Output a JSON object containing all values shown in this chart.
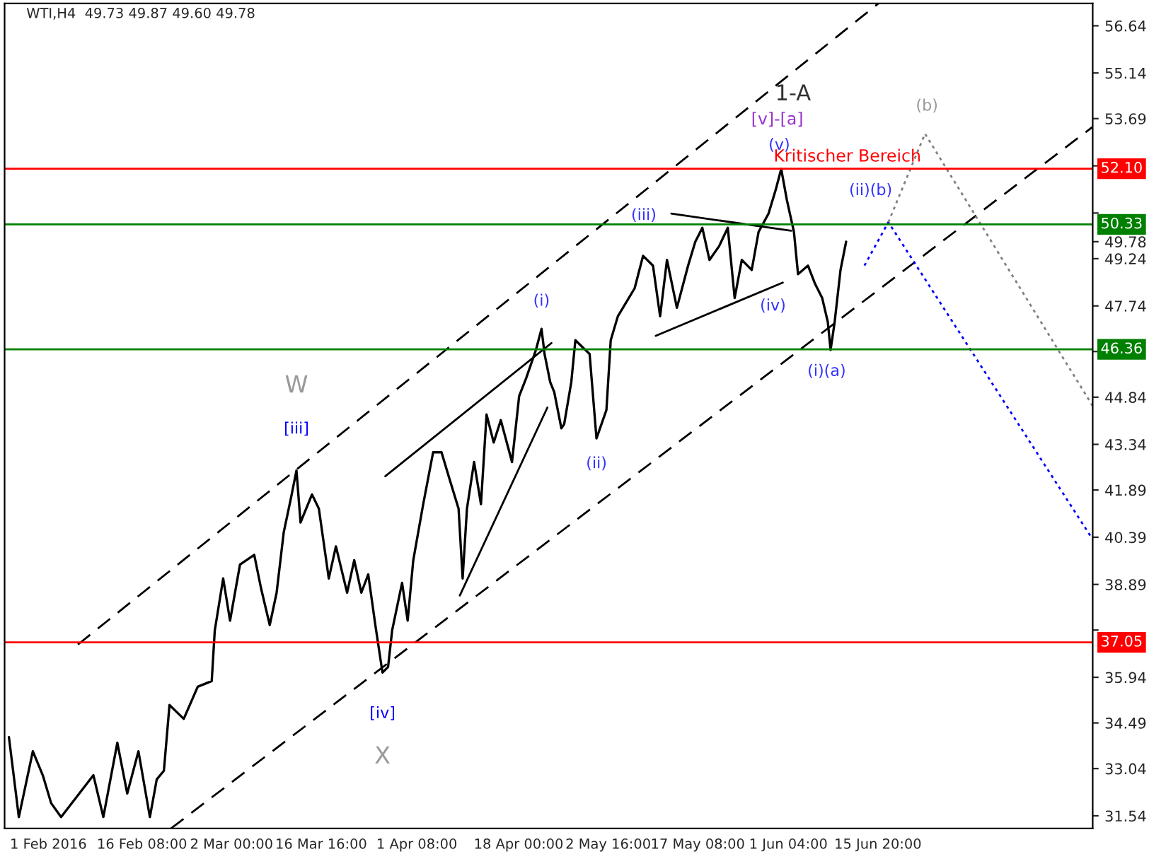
{
  "chart_data": {
    "type": "line",
    "title": "WTI,H4  49.73 49.87 49.60 49.78",
    "xlim": [
      "2016-01-24T20:00",
      "2016-07-21T00:00"
    ],
    "ylim": [
      31.14,
      57.35
    ],
    "xticks": [
      {
        "value": "2016-02-01T00:00",
        "label": "1 Feb 2016"
      },
      {
        "value": "2016-02-16T08:00",
        "label": "16 Feb 08:00"
      },
      {
        "value": "2016-03-02T00:00",
        "label": "2 Mar 00:00"
      },
      {
        "value": "2016-03-16T16:00",
        "label": "16 Mar 16:00"
      },
      {
        "value": "2016-04-01T08:00",
        "label": "1 Apr 08:00"
      },
      {
        "value": "2016-04-18T00:00",
        "label": "18 Apr 00:00"
      },
      {
        "value": "2016-05-02T16:00",
        "label": "2 May 16:00"
      },
      {
        "value": "2016-05-17T08:00",
        "label": "17 May 08:00"
      },
      {
        "value": "2016-06-01T04:00",
        "label": "1 Jun 04:00"
      },
      {
        "value": "2016-06-15T20:00",
        "label": "15 Jun 20:00"
      }
    ],
    "yticks": [
      56.64,
      55.14,
      53.69,
      {
        "value": 52.19,
        "label": null
      },
      {
        "value": 50.69,
        "label": null
      },
      {
        "value": 49.78,
        "label": "49.78"
      },
      49.24,
      47.74,
      {
        "value": 46.29,
        "label": null
      },
      44.84,
      43.34,
      41.89,
      40.39,
      38.89,
      {
        "value": 37.44,
        "label": null
      },
      35.94,
      34.49,
      33.04,
      31.54
    ],
    "grid": false,
    "legend": false,
    "marker": "none",
    "series": [
      {
        "color": "#000000",
        "line_style": "solid",
        "x": [
          "2016-01-25T13:00",
          "2016-01-27T04:00",
          "2016-01-29T11:00",
          "2016-01-31T02:00",
          "2016-02-01T11:00",
          "2016-02-03T02:00",
          "2016-02-08T09:00",
          "2016-02-10T00:00",
          "2016-02-12T07:00",
          "2016-02-13T22:00",
          "2016-02-15T18:00",
          "2016-02-17T15:00",
          "2016-02-18T18:00",
          "2016-02-19T22:00",
          "2016-02-20T20:00",
          "2016-02-23T04:00",
          "2016-02-25T11:00",
          "2016-02-27T18:00",
          "2016-02-28T06:00",
          "2016-02-29T15:00",
          "2016-03-01T18:00",
          "2016-03-03T09:00",
          "2016-03-05T17:00",
          "2016-03-06T20:00",
          "2016-03-08T06:00",
          "2016-03-09T09:00",
          "2016-03-10T13:00",
          "2016-03-11T17:00",
          "2016-03-12T15:00",
          "2016-03-13T07:00",
          "2016-03-15T04:00",
          "2016-03-16T07:00",
          "2016-03-17T22:00",
          "2016-03-19T02:00",
          "2016-03-20T22:00",
          "2016-03-22T02:00",
          "2016-03-23T06:00",
          "2016-03-24T09:00",
          "2016-03-25T13:00",
          "2016-03-26T17:00",
          "2016-03-27T15:00",
          "2016-03-28T07:00",
          "2016-03-29T22:00",
          "2016-03-30T20:00",
          "2016-03-31T18:00",
          "2016-04-02T09:00",
          "2016-04-04T00:00",
          "2016-04-05T09:00",
          "2016-04-06T13:00",
          "2016-04-08T04:00",
          "2016-04-08T20:00",
          "2016-04-09T13:00",
          "2016-04-10T17:00",
          "2016-04-11T20:00",
          "2016-04-12T18:00",
          "2016-04-13T22:00",
          "2016-04-15T02:00",
          "2016-04-16T22:00",
          "2016-04-18T02:00",
          "2016-04-19T06:00",
          "2016-04-20T20:00",
          "2016-04-21T18:00",
          "2016-04-22T06:00",
          "2016-04-23T04:00",
          "2016-04-23T20:00",
          "2016-04-25T00:00",
          "2016-04-25T11:00",
          "2016-04-26T15:00",
          "2016-04-27T07:00",
          "2016-04-29T15:00",
          "2016-04-30T18:00",
          "2016-05-02T09:00",
          "2016-05-03T02:00",
          "2016-05-04T06:00",
          "2016-05-07T00:00",
          "2016-05-08T09:00",
          "2016-05-10T00:00",
          "2016-05-11T04:00",
          "2016-05-12T07:00",
          "2016-05-13T22:00",
          "2016-05-15T18:00",
          "2016-05-16T22:00",
          "2016-05-18T02:00",
          "2016-05-19T06:00",
          "2016-05-20T20:00",
          "2016-05-22T06:00",
          "2016-05-23T09:00",
          "2016-05-24T13:00",
          "2016-05-26T04:00",
          "2016-05-27T07:00",
          "2016-05-28T22:00",
          "2016-05-30T02:00",
          "2016-05-31T00:00",
          "2016-05-31T22:00",
          "2016-06-02T02:00",
          "2016-06-02T18:00",
          "2016-06-04T09:00",
          "2016-06-05T13:00",
          "2016-06-06T17:00",
          "2016-06-07T15:00",
          "2016-06-08T02:00",
          "2016-06-08T18:00",
          "2016-06-09T17:00",
          "2016-06-10T15:00"
        ],
        "values": [
          34.04,
          31.5,
          33.59,
          32.83,
          31.94,
          31.5,
          32.83,
          31.5,
          33.86,
          32.25,
          33.59,
          31.5,
          32.7,
          32.97,
          35.06,
          34.62,
          35.64,
          35.82,
          37.43,
          39.08,
          37.74,
          39.52,
          39.83,
          38.76,
          37.6,
          38.63,
          40.55,
          41.62,
          42.51,
          40.86,
          41.75,
          41.3,
          39.08,
          40.1,
          38.63,
          39.66,
          38.63,
          39.21,
          37.6,
          36.09,
          36.27,
          37.43,
          38.94,
          37.74,
          39.66,
          41.44,
          43.09,
          43.09,
          42.33,
          41.3,
          39.08,
          41.3,
          42.78,
          41.44,
          44.29,
          43.4,
          44.11,
          42.78,
          44.87,
          45.45,
          46.34,
          47.01,
          46.21,
          45.32,
          45.0,
          43.85,
          43.98,
          45.32,
          46.65,
          46.21,
          43.53,
          44.43,
          46.65,
          47.41,
          48.3,
          49.33,
          49.02,
          47.41,
          49.2,
          47.68,
          49.02,
          49.77,
          50.22,
          49.2,
          49.64,
          50.22,
          47.99,
          49.2,
          48.88,
          50.09,
          50.67,
          51.42,
          52.09,
          51.11,
          50.09,
          48.75,
          49.02,
          48.44,
          47.99,
          47.23,
          46.34,
          47.23,
          48.88,
          49.78
        ]
      },
      {
        "color": "#000000",
        "line_style": "dashed",
        "x": [
          "2016-02-05T20:00",
          "2016-06-15T22:00"
        ],
        "values": [
          36.98,
          57.35
        ]
      },
      {
        "color": "#000000",
        "line_style": "dashed",
        "x": [
          "2016-02-21T02:00",
          "2016-07-21T00:00"
        ],
        "values": [
          31.14,
          53.43
        ]
      },
      {
        "color": "#000000",
        "line_style": "solid",
        "x": [
          "2016-03-27T04:00",
          "2016-04-23T09:00"
        ],
        "values": [
          42.33,
          46.56
        ]
      },
      {
        "color": "#000000",
        "line_style": "solid",
        "x": [
          "2016-04-08T09:00",
          "2016-04-22T17:00"
        ],
        "values": [
          38.54,
          44.51
        ]
      },
      {
        "color": "#000000",
        "line_style": "solid",
        "x": [
          "2016-05-13T00:00",
          "2016-06-01T15:00"
        ],
        "values": [
          50.67,
          50.13
        ]
      },
      {
        "color": "#000000",
        "line_style": "solid",
        "x": [
          "2016-05-10T11:00",
          "2016-05-31T06:00"
        ],
        "values": [
          46.79,
          48.48
        ]
      },
      {
        "color": "#0000ff",
        "line_style": "dotted",
        "x": [
          "2016-06-13T15:00",
          "2016-06-17T13:00",
          "2016-07-21T00:00"
        ],
        "values": [
          49.02,
          50.4,
          40.32
        ]
      },
      {
        "color": "#808080",
        "line_style": "dotted",
        "x": [
          "2016-06-17T13:00",
          "2016-06-23T13:00",
          "2016-07-21T00:00"
        ],
        "values": [
          50.4,
          53.21,
          44.56
        ]
      }
    ],
    "ref_lines": [
      {
        "axis": "y",
        "value": 52.1,
        "label": "52.10",
        "color": "#ff0000"
      },
      {
        "axis": "y",
        "value": 50.33,
        "label": "50.33",
        "color": "#008000"
      },
      {
        "axis": "y",
        "value": 46.36,
        "label": "46.36",
        "color": "#008000"
      },
      {
        "axis": "y",
        "value": 37.05,
        "label": "37.05",
        "color": "#ff0000"
      }
    ],
    "annotations": [
      "W",
      {
        "text": "[iii]",
        "x": "2016-03-12T15:00",
        "y": 42.51
      },
      {
        "text": "[iv]",
        "x": "2016-03-26T17:00",
        "y": 36.09
      },
      "X",
      {
        "text": "(i)",
        "x": "2016-04-21T18:00",
        "y": 47.01
      },
      {
        "text": "(ii)",
        "x": "2016-04-30T18:00",
        "y": 43.53
      },
      {
        "text": "(iii)",
        "x": "2016-05-13T00:00",
        "y": 50.67
      },
      {
        "text": "(iv)",
        "x": "2016-05-31T06:00",
        "y": 48.48
      },
      {
        "text": "(v)",
        "x": "2016-05-31T00:00",
        "y": 52.09
      },
      {
        "text": "[v]-[a]",
        "x": "2016-05-31T00:00",
        "y": 52.09
      },
      "1-A",
      {
        "text": "Kritischer Bereich",
        "x": "2016-06-10T20:00",
        "y": 52.1
      },
      {
        "text": "(ii)(b)",
        "x": "2016-06-17T13:00",
        "y": 50.4
      },
      {
        "text": "(i)(a)",
        "x": "2016-06-08T02:00",
        "y": 46.34
      },
      {
        "text": "(b)",
        "x": "2016-06-23T13:00",
        "y": 53.21
      }
    ]
  }
}
